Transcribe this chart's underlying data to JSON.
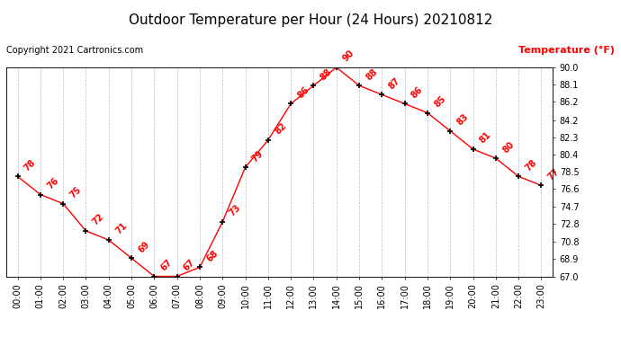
{
  "title": "Outdoor Temperature per Hour (24 Hours) 20210812",
  "copyright": "Copyright 2021 Cartronics.com",
  "legend_label": "Temperature (°F)",
  "hours": [
    "00:00",
    "01:00",
    "02:00",
    "03:00",
    "04:00",
    "05:00",
    "06:00",
    "07:00",
    "08:00",
    "09:00",
    "10:00",
    "11:00",
    "12:00",
    "13:00",
    "14:00",
    "15:00",
    "16:00",
    "17:00",
    "18:00",
    "19:00",
    "20:00",
    "21:00",
    "22:00",
    "23:00"
  ],
  "temps": [
    78,
    76,
    75,
    72,
    71,
    69,
    67,
    67,
    68,
    73,
    79,
    82,
    86,
    88,
    90,
    88,
    87,
    86,
    85,
    83,
    81,
    80,
    78,
    77
  ],
  "line_color": "red",
  "marker_color": "black",
  "title_color": "black",
  "copyright_color": "black",
  "legend_color": "red",
  "ylim_min": 67.0,
  "ylim_max": 90.0,
  "yticks": [
    67.0,
    68.9,
    70.8,
    72.8,
    74.7,
    76.6,
    78.5,
    80.4,
    82.3,
    84.2,
    86.2,
    88.1,
    90.0
  ],
  "background_color": "#ffffff",
  "grid_color": "#bbbbbb",
  "title_fontsize": 11,
  "label_fontsize": 7,
  "annotation_fontsize": 7,
  "copyright_fontsize": 7,
  "legend_fontsize": 8
}
